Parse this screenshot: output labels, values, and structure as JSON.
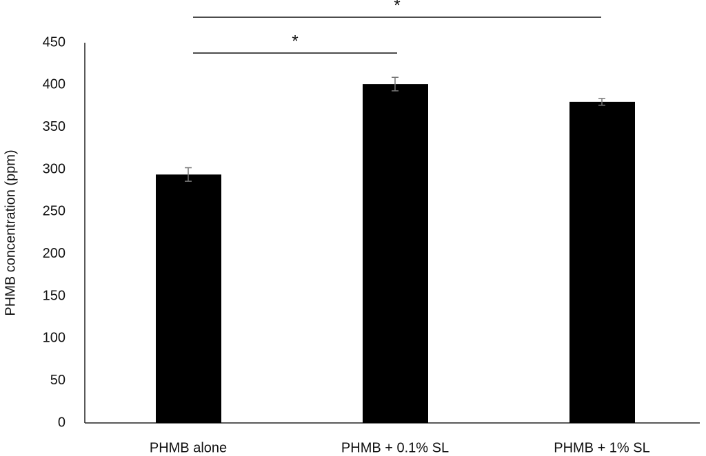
{
  "chart_data": {
    "type": "bar",
    "y_label": "PHMB concentration (ppm)",
    "categories": [
      "PHMB alone",
      "PHMB + 0.1% SL",
      "PHMB + 1% SL"
    ],
    "values": [
      294,
      401,
      380
    ],
    "errors": [
      8,
      8,
      4
    ],
    "color": "#000000",
    "ylim": [
      0,
      450
    ],
    "yticks": [
      0,
      50,
      100,
      150,
      200,
      250,
      300,
      350,
      400,
      450
    ],
    "grid": false,
    "annotations": [
      "*",
      "*"
    ]
  }
}
